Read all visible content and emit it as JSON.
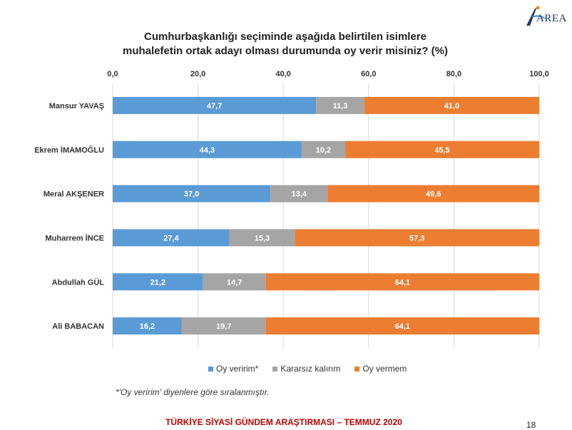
{
  "logo": {
    "text": "AREA"
  },
  "title_lines": [
    "Cumhurbaşkanlığı seçiminde aşağıda belirtilen isimlere",
    "muhalefetin ortak adayı olması durumunda oy verir misiniz? (%)"
  ],
  "note": "*'Oy veririm' diyenlere göre sıralanmıştır.",
  "footer": "TÜRKİYE SİYASİ GÜNDEM ARAŞTIRMASI – TEMMUZ 2020",
  "page_number": "18",
  "chart_data": {
    "type": "bar",
    "orientation": "horizontal",
    "stacked": true,
    "title": "Cumhurbaşkanlığı seçiminde aşağıda belirtilen isimlere muhalefetin ortak adayı olması durumunda oy verir misiniz? (%)",
    "categories": [
      "Mansur YAVAŞ",
      "Ekrem İMAMOĞLU",
      "Meral AKŞENER",
      "Muharrem İNCE",
      "Abdullah GÜL",
      "Ali BABACAN"
    ],
    "series": [
      {
        "name": "Oy veririm*",
        "color": "#5b9bd5",
        "values": [
          47.7,
          44.3,
          37.0,
          27.4,
          21.2,
          16.2
        ]
      },
      {
        "name": "Kararsız kalırım",
        "color": "#a5a5a5",
        "values": [
          11.3,
          10.2,
          13.4,
          15.3,
          14.7,
          19.7
        ]
      },
      {
        "name": "Oy vermem",
        "color": "#ed7d31",
        "values": [
          41.0,
          45.5,
          49.6,
          57.3,
          64.1,
          64.1
        ]
      }
    ],
    "xlim": [
      0,
      100
    ],
    "x_ticks": [
      "0,0",
      "20,0",
      "40,0",
      "60,0",
      "80,0",
      "100,0"
    ],
    "x_axis_position": "top",
    "grid": true,
    "legend_position": "bottom"
  }
}
